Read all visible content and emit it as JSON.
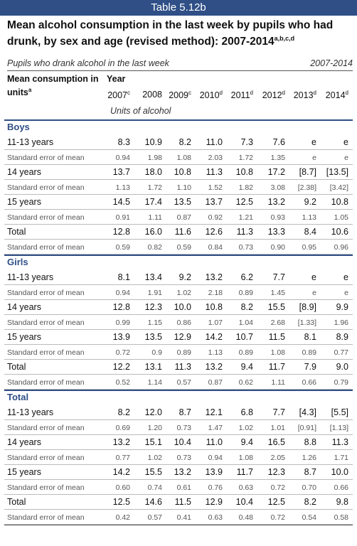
{
  "banner": "Table 5.12b",
  "title": {
    "text": "Mean alcohol consumption in the last week by pupils who had drunk, by sex and age (revised method): 2007-2014",
    "sup": "a,b,c,d"
  },
  "subhead": {
    "left": "Pupils who drank alcohol in the last week",
    "right": "2007-2014"
  },
  "columns": {
    "stub_label": "Mean consumption in units",
    "stub_sup": "a",
    "year_label": "Year",
    "units_label": "Units of alcohol",
    "years": [
      {
        "y": "2007",
        "sup": "c"
      },
      {
        "y": "2008",
        "sup": ""
      },
      {
        "y": "2009",
        "sup": "c"
      },
      {
        "y": "2010",
        "sup": "d"
      },
      {
        "y": "2011",
        "sup": "d"
      },
      {
        "y": "2012",
        "sup": "d"
      },
      {
        "y": "2013",
        "sup": "d"
      },
      {
        "y": "2014",
        "sup": "d"
      }
    ]
  },
  "sections": [
    {
      "name": "Boys",
      "rows": [
        {
          "label": "11-13 years",
          "type": "main",
          "values": [
            "8.3",
            "10.9",
            "8.2",
            "11.0",
            "7.3",
            "7.6",
            "e",
            "e"
          ]
        },
        {
          "label": "Standard error of mean",
          "type": "se",
          "values": [
            "0.94",
            "1.98",
            "1.08",
            "2.03",
            "1.72",
            "1.35",
            "e",
            "e"
          ]
        },
        {
          "label": "14 years",
          "type": "main",
          "values": [
            "13.7",
            "18.0",
            "10.8",
            "11.3",
            "10.8",
            "17.2",
            "[8.7]",
            "[13.5]"
          ]
        },
        {
          "label": "Standard error of mean",
          "type": "se",
          "values": [
            "1.13",
            "1.72",
            "1.10",
            "1.52",
            "1.82",
            "3.08",
            "[2.38]",
            "[3.42]"
          ]
        },
        {
          "label": "15 years",
          "type": "main",
          "values": [
            "14.5",
            "17.4",
            "13.5",
            "13.7",
            "12.5",
            "13.2",
            "9.2",
            "10.8"
          ]
        },
        {
          "label": "Standard error of mean",
          "type": "se",
          "values": [
            "0.91",
            "1.11",
            "0.87",
            "0.92",
            "1.21",
            "0.93",
            "1.13",
            "1.05"
          ]
        },
        {
          "label": "Total",
          "type": "main",
          "values": [
            "12.8",
            "16.0",
            "11.6",
            "12.6",
            "11.3",
            "13.3",
            "8.4",
            "10.6"
          ]
        },
        {
          "label": "Standard error of mean",
          "type": "se",
          "values": [
            "0.59",
            "0.82",
            "0.59",
            "0.84",
            "0.73",
            "0.90",
            "0.95",
            "0.96"
          ]
        }
      ]
    },
    {
      "name": "Girls",
      "rows": [
        {
          "label": "11-13 years",
          "type": "main",
          "values": [
            "8.1",
            "13.4",
            "9.2",
            "13.2",
            "6.2",
            "7.7",
            "e",
            "e"
          ]
        },
        {
          "label": "Standard error of mean",
          "type": "se",
          "values": [
            "0.94",
            "1.91",
            "1.02",
            "2.18",
            "0.89",
            "1.45",
            "e",
            "e"
          ]
        },
        {
          "label": "14 years",
          "type": "main",
          "values": [
            "12.8",
            "12.3",
            "10.0",
            "10.8",
            "8.2",
            "15.5",
            "[8.9]",
            "9.9"
          ]
        },
        {
          "label": "Standard error of mean",
          "type": "se",
          "values": [
            "0.99",
            "1.15",
            "0.86",
            "1.07",
            "1.04",
            "2.68",
            "[1.33]",
            "1.96"
          ]
        },
        {
          "label": "15 years",
          "type": "main",
          "values": [
            "13.9",
            "13.5",
            "12.9",
            "14.2",
            "10.7",
            "11.5",
            "8.1",
            "8.9"
          ]
        },
        {
          "label": "Standard error of mean",
          "type": "se",
          "values": [
            "0.72",
            "0.9",
            "0.89",
            "1.13",
            "0.89",
            "1.08",
            "0.89",
            "0.77"
          ]
        },
        {
          "label": "Total",
          "type": "main",
          "values": [
            "12.2",
            "13.1",
            "11.3",
            "13.2",
            "9.4",
            "11.7",
            "7.9",
            "9.0"
          ]
        },
        {
          "label": "Standard error of mean",
          "type": "se",
          "values": [
            "0.52",
            "1.14",
            "0.57",
            "0.87",
            "0.62",
            "1.11",
            "0.66",
            "0.79"
          ]
        }
      ]
    },
    {
      "name": "Total",
      "rows": [
        {
          "label": "11-13 years",
          "type": "main",
          "values": [
            "8.2",
            "12.0",
            "8.7",
            "12.1",
            "6.8",
            "7.7",
            "[4.3]",
            "[5.5]"
          ]
        },
        {
          "label": "Standard error of mean",
          "type": "se",
          "values": [
            "0.69",
            "1.20",
            "0.73",
            "1.47",
            "1.02",
            "1.01",
            "[0.91]",
            "[1.13]"
          ]
        },
        {
          "label": "14 years",
          "type": "main",
          "values": [
            "13.2",
            "15.1",
            "10.4",
            "11.0",
            "9.4",
            "16.5",
            "8.8",
            "11.3"
          ]
        },
        {
          "label": "Standard error of mean",
          "type": "se",
          "values": [
            "0.77",
            "1.02",
            "0.73",
            "0.94",
            "1.08",
            "2.05",
            "1.26",
            "1.71"
          ]
        },
        {
          "label": "15 years",
          "type": "main",
          "values": [
            "14.2",
            "15.5",
            "13.2",
            "13.9",
            "11.7",
            "12.3",
            "8.7",
            "10.0"
          ]
        },
        {
          "label": "Standard error of mean",
          "type": "se",
          "values": [
            "0.60",
            "0.74",
            "0.61",
            "0.76",
            "0.63",
            "0.72",
            "0.70",
            "0.66"
          ]
        },
        {
          "label": "Total",
          "type": "main",
          "values": [
            "12.5",
            "14.6",
            "11.5",
            "12.9",
            "10.4",
            "12.5",
            "8.2",
            "9.8"
          ]
        },
        {
          "label": "Standard error of mean",
          "type": "se",
          "values": [
            "0.42",
            "0.57",
            "0.41",
            "0.63",
            "0.48",
            "0.72",
            "0.54",
            "0.58"
          ]
        }
      ]
    }
  ]
}
